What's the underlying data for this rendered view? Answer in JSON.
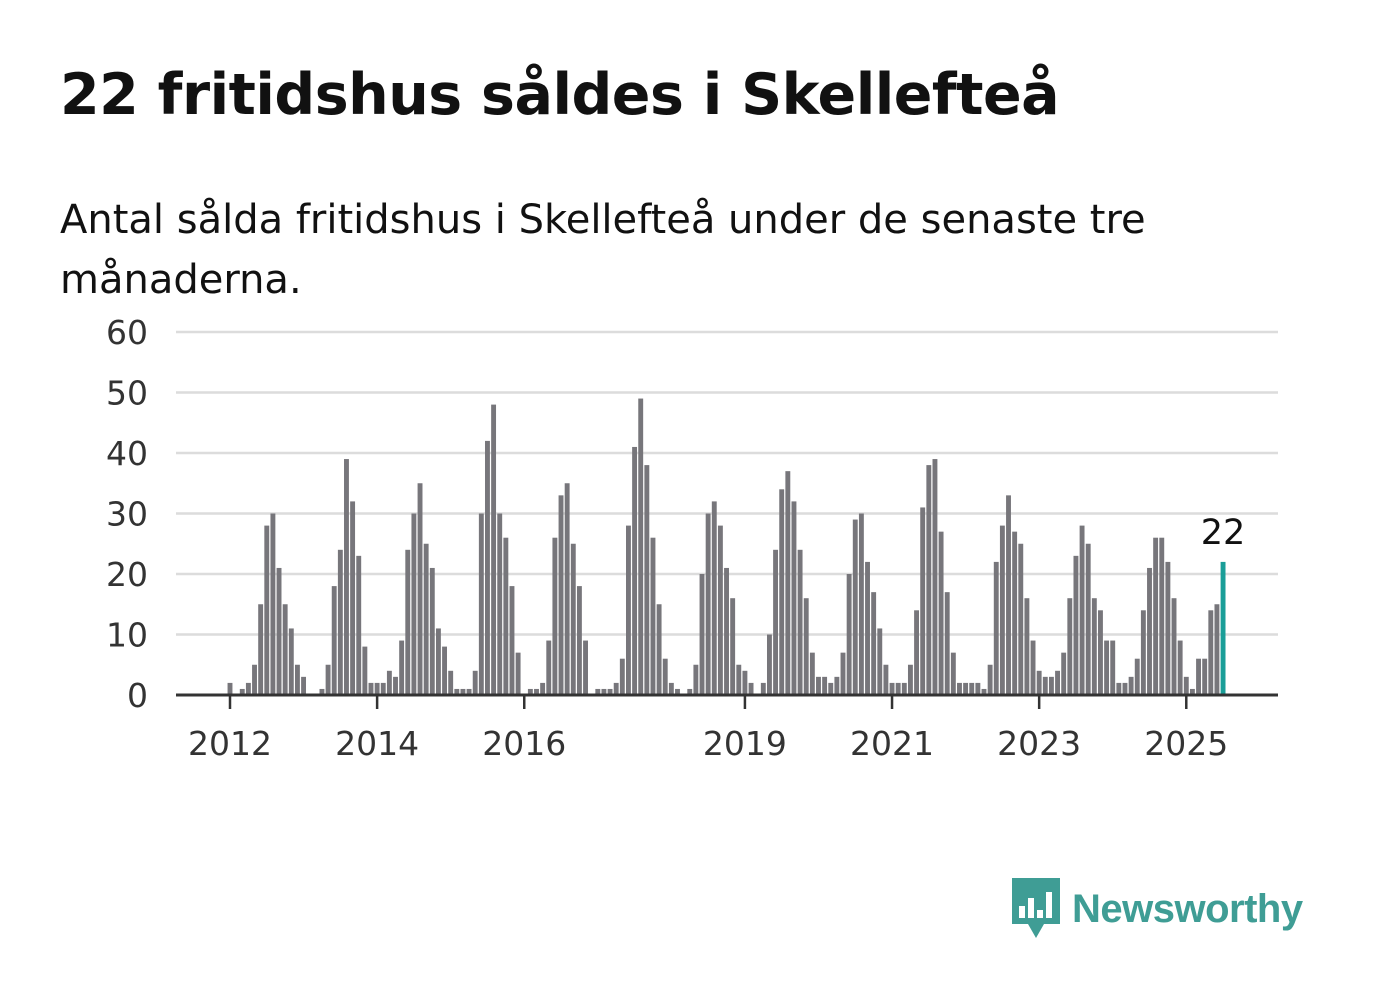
{
  "title": "22 fritidshus såldes i Skellefteå",
  "subtitle": "Antal sålda fritidshus i Skellefteå under de senaste tre månaderna.",
  "brand": {
    "name": "Newsworthy",
    "color": "#3f9d95",
    "icon": "bar-chart-speech-bubble-icon"
  },
  "colors": {
    "bars": "#77767b",
    "highlight": "#1a9e98",
    "grid": "#dcdcdc",
    "axis": "#333333"
  },
  "chart_data": {
    "type": "bar",
    "title": "22 fritidshus såldes i Skellefteå",
    "subtitle": "Antal sålda fritidshus i Skellefteå under de senaste tre månaderna.",
    "xlabel": "",
    "ylabel": "",
    "ylim": [
      0,
      60
    ],
    "yticks": [
      0,
      10,
      20,
      30,
      40,
      50,
      60
    ],
    "xticks": [
      "2012",
      "2014",
      "2016",
      "2019",
      "2021",
      "2023",
      "2025"
    ],
    "grid": true,
    "start": "2011-06",
    "frequency": "monthly",
    "annotation": {
      "label": "22",
      "value": 22,
      "at": "last"
    },
    "values": [
      0,
      0,
      0,
      0,
      0,
      0,
      0,
      2,
      0,
      1,
      2,
      5,
      15,
      28,
      30,
      21,
      15,
      11,
      5,
      3,
      0,
      0,
      1,
      5,
      18,
      24,
      39,
      32,
      23,
      8,
      2,
      2,
      2,
      4,
      3,
      9,
      24,
      30,
      35,
      25,
      21,
      11,
      8,
      4,
      1,
      1,
      1,
      4,
      30,
      42,
      48,
      30,
      26,
      18,
      7,
      0,
      1,
      1,
      2,
      9,
      26,
      33,
      35,
      25,
      18,
      9,
      0,
      1,
      1,
      1,
      2,
      6,
      28,
      41,
      49,
      38,
      26,
      15,
      6,
      2,
      1,
      0,
      1,
      5,
      20,
      30,
      32,
      28,
      21,
      16,
      5,
      4,
      2,
      0,
      2,
      10,
      24,
      34,
      37,
      32,
      24,
      16,
      7,
      3,
      3,
      2,
      3,
      7,
      20,
      29,
      30,
      22,
      17,
      11,
      5,
      2,
      2,
      2,
      5,
      14,
      31,
      38,
      39,
      27,
      17,
      7,
      2,
      2,
      2,
      2,
      1,
      5,
      22,
      28,
      33,
      27,
      25,
      16,
      9,
      4,
      3,
      3,
      4,
      7,
      16,
      23,
      28,
      25,
      16,
      14,
      9,
      9,
      2,
      2,
      3,
      6,
      14,
      21,
      26,
      26,
      22,
      16,
      9,
      3,
      1,
      6,
      6,
      14,
      15,
      22
    ]
  }
}
